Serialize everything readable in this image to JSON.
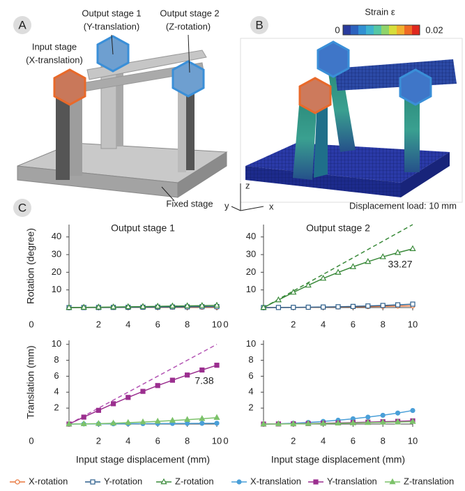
{
  "panel_a": {
    "label": "A",
    "output_stage_1": [
      "Output stage 1",
      "(Y-translation)"
    ],
    "output_stage_2": [
      "Output stage 2",
      "(Z-rotation)"
    ],
    "input_stage": [
      "Input stage",
      "(X-translation)"
    ],
    "fixed_stage": "Fixed stage"
  },
  "panel_b": {
    "label": "B",
    "colorbar": {
      "title": "Strain ε",
      "min": 0,
      "max": 0.02,
      "colors": [
        "#2a3c9e",
        "#2c62be",
        "#3190d2",
        "#3fb3cf",
        "#55c7a5",
        "#8fd46a",
        "#d7de3a",
        "#f2b030",
        "#ef6a25",
        "#e0281e"
      ]
    },
    "axes": [
      "z",
      "y",
      "x"
    ],
    "load": "Displacement load: 10 mm"
  },
  "panel_c": {
    "label": "C"
  },
  "chart_data": [
    {
      "type": "line",
      "title": "Output stage 1",
      "y_label": "Rotation (degree)",
      "x": [
        0,
        1,
        2,
        3,
        4,
        5,
        6,
        7,
        8,
        9,
        10
      ],
      "xlim": [
        0,
        10
      ],
      "xticks": [
        0,
        2,
        4,
        6,
        8,
        10
      ],
      "ylim": [
        0,
        47
      ],
      "yticks": [
        10,
        20,
        30,
        40
      ],
      "series": [
        {
          "name": "X-rotation",
          "color": "#e8763c",
          "marker": "circle",
          "filled": false,
          "values": [
            0,
            0.02,
            0.04,
            0.06,
            0.08,
            0.1,
            0.12,
            0.14,
            0.16,
            0.18,
            0.2
          ]
        },
        {
          "name": "Y-rotation",
          "color": "#2d5f8c",
          "marker": "square",
          "filled": false,
          "values": [
            0,
            0.03,
            0.06,
            0.1,
            0.14,
            0.2,
            0.26,
            0.33,
            0.4,
            0.48,
            0.56
          ]
        },
        {
          "name": "Z-rotation",
          "color": "#3a8a3a",
          "marker": "triangle",
          "filled": false,
          "values": [
            0,
            0.1,
            0.2,
            0.3,
            0.42,
            0.55,
            0.68,
            0.82,
            0.96,
            1.1,
            1.25
          ]
        }
      ]
    },
    {
      "type": "line",
      "title": "Output stage 2",
      "x": [
        0,
        1,
        2,
        3,
        4,
        5,
        6,
        7,
        8,
        9,
        10
      ],
      "xlim": [
        0,
        10
      ],
      "xticks": [
        0,
        2,
        4,
        6,
        8,
        10
      ],
      "ylim": [
        0,
        47
      ],
      "yticks": [
        10,
        20,
        30,
        40
      ],
      "series": [
        {
          "name": "X-rotation",
          "color": "#e8763c",
          "marker": "circle",
          "filled": false,
          "values": [
            0,
            0.03,
            0.07,
            0.12,
            0.2,
            0.3,
            0.42,
            0.55,
            0.7,
            0.85,
            1.0
          ]
        },
        {
          "name": "Y-rotation",
          "color": "#2d5f8c",
          "marker": "square",
          "filled": false,
          "values": [
            0,
            0.05,
            0.12,
            0.2,
            0.3,
            0.45,
            0.65,
            0.9,
            1.2,
            1.55,
            1.95
          ]
        },
        {
          "name": "Z-rotation",
          "color": "#3a8a3a",
          "marker": "triangle",
          "filled": false,
          "values": [
            0,
            4.3,
            8.6,
            12.6,
            16.5,
            19.9,
            23.1,
            26,
            28.7,
            31.1,
            33.27
          ],
          "value_labels": [
            null,
            null,
            null,
            null,
            null,
            null,
            null,
            null,
            null,
            null,
            "33.27"
          ]
        }
      ],
      "reference": {
        "color": "#3a8a3a",
        "x": [
          0,
          10
        ],
        "values": [
          0,
          47
        ]
      }
    },
    {
      "type": "line",
      "y_label": "Translation (mm)",
      "x_label": "Input stage displacement (mm)",
      "x": [
        0,
        1,
        2,
        3,
        4,
        5,
        6,
        7,
        8,
        9,
        10
      ],
      "xlim": [
        0,
        10
      ],
      "xticks": [
        0,
        2,
        4,
        6,
        8,
        10
      ],
      "ylim": [
        0,
        10.5
      ],
      "yticks": [
        2,
        4,
        6,
        8,
        10
      ],
      "series": [
        {
          "name": "X-translation",
          "color": "#4a9fd8",
          "marker": "circle",
          "filled": true,
          "values": [
            0,
            0.01,
            0.02,
            0.03,
            0.04,
            0.05,
            0.06,
            0.07,
            0.08,
            0.09,
            0.1
          ]
        },
        {
          "name": "Y-translation",
          "color": "#9b2f8f",
          "marker": "square",
          "filled": true,
          "values": [
            0,
            0.87,
            1.72,
            2.55,
            3.34,
            4.1,
            4.83,
            5.5,
            6.15,
            6.78,
            7.38
          ],
          "value_labels": [
            null,
            null,
            null,
            null,
            null,
            null,
            null,
            null,
            null,
            null,
            "7.38"
          ]
        },
        {
          "name": "Z-translation",
          "color": "#7cc26a",
          "marker": "triangle",
          "filled": true,
          "values": [
            0,
            0.02,
            0.05,
            0.1,
            0.17,
            0.25,
            0.34,
            0.44,
            0.55,
            0.67,
            0.8
          ]
        }
      ],
      "reference": {
        "color": "#b455b4",
        "x": [
          0,
          10
        ],
        "values": [
          0,
          10
        ]
      }
    },
    {
      "type": "line",
      "x_label": "Input stage displacement (mm)",
      "x": [
        0,
        1,
        2,
        3,
        4,
        5,
        6,
        7,
        8,
        9,
        10
      ],
      "xlim": [
        0,
        10
      ],
      "xticks": [
        0,
        2,
        4,
        6,
        8,
        10
      ],
      "ylim": [
        0,
        10.5
      ],
      "yticks": [
        2,
        4,
        6,
        8,
        10
      ],
      "series": [
        {
          "name": "X-translation",
          "color": "#4a9fd8",
          "marker": "circle",
          "filled": true,
          "values": [
            0,
            0.03,
            0.1,
            0.2,
            0.33,
            0.48,
            0.66,
            0.87,
            1.1,
            1.38,
            1.7
          ]
        },
        {
          "name": "Y-translation",
          "color": "#9b2f8f",
          "marker": "square",
          "filled": true,
          "values": [
            0,
            0.01,
            0.03,
            0.06,
            0.1,
            0.14,
            0.19,
            0.24,
            0.29,
            0.34,
            0.4
          ]
        },
        {
          "name": "Z-translation",
          "color": "#7cc26a",
          "marker": "triangle",
          "filled": true,
          "values": [
            0,
            0.01,
            0.02,
            0.04,
            0.07,
            0.1,
            0.13,
            0.17,
            0.21,
            0.25,
            0.3
          ]
        }
      ]
    }
  ]
}
